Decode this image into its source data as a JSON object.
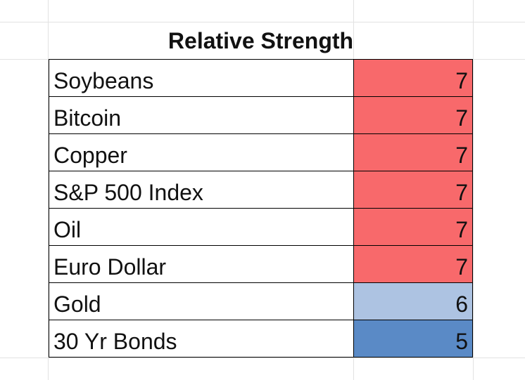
{
  "sheet": {
    "title": "Relative Strength",
    "rows": [
      {
        "name": "Soybeans",
        "value": "7",
        "fill": "#f8696b"
      },
      {
        "name": "Bitcoin",
        "value": "7",
        "fill": "#f8696b"
      },
      {
        "name": "Copper",
        "value": "7",
        "fill": "#f8696b"
      },
      {
        "name": "S&P 500 Index",
        "value": "7",
        "fill": "#f8696b"
      },
      {
        "name": "Oil",
        "value": "7",
        "fill": "#f8696b"
      },
      {
        "name": "Euro Dollar",
        "value": "7",
        "fill": "#f8696b"
      },
      {
        "name": "Gold",
        "value": "6",
        "fill": "#adc3e2"
      },
      {
        "name": "30 Yr Bonds",
        "value": "5",
        "fill": "#5a8ac6"
      }
    ]
  }
}
